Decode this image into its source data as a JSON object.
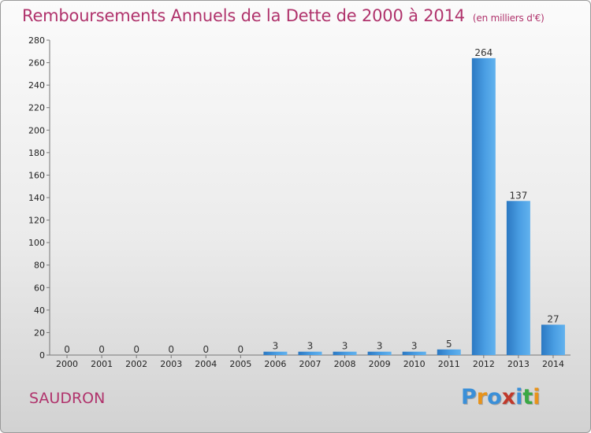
{
  "title": "Remboursements Annuels de la Dette de 2000 à 2014",
  "unit": "(en milliers d'€)",
  "commune": "SAUDRON",
  "logo": {
    "text": "Proxiti",
    "colors": [
      "#3a8fd8",
      "#e8931a",
      "#3a8fd8",
      "#c0392b",
      "#3a8fd8",
      "#3aa845",
      "#e8931a"
    ]
  },
  "colors": {
    "bar": "#3d8fd6",
    "bar_light": "#62b2ee",
    "title": "#b0336c"
  },
  "chart_data": {
    "type": "bar",
    "categories": [
      "2000",
      "2001",
      "2002",
      "2003",
      "2004",
      "2005",
      "2006",
      "2007",
      "2008",
      "2009",
      "2010",
      "2011",
      "2012",
      "2013",
      "2014"
    ],
    "values": [
      0,
      0,
      0,
      0,
      0,
      0,
      3,
      3,
      3,
      3,
      3,
      5,
      264,
      137,
      27
    ],
    "title": "Remboursements Annuels de la Dette de 2000 à 2014",
    "ylabel": "",
    "xlabel": "",
    "ylim": [
      0,
      280
    ],
    "yticks": [
      0,
      20,
      40,
      60,
      80,
      100,
      120,
      140,
      160,
      180,
      200,
      220,
      240,
      260,
      280
    ],
    "grid": false,
    "legend": "none"
  }
}
